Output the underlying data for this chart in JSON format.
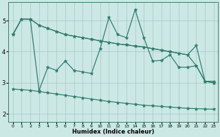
{
  "color": "#2d7d6e",
  "bg_color": "#cce8e4",
  "grid_color": "#aacccc",
  "xlabel": "Humidex (Indice chaleur)",
  "xlim": [
    -0.5,
    23.5
  ],
  "ylim": [
    1.75,
    5.6
  ],
  "yticks": [
    2,
    3,
    4,
    5
  ],
  "xticks": [
    0,
    1,
    2,
    3,
    4,
    5,
    6,
    7,
    8,
    9,
    10,
    11,
    12,
    13,
    14,
    15,
    16,
    17,
    18,
    19,
    20,
    21,
    22,
    23
  ],
  "marker": "*",
  "markersize": 3.5,
  "linewidth": 0.9,
  "lines": [
    {
      "x": [
        0,
        1,
        2,
        3,
        4,
        5,
        6,
        7,
        8,
        9,
        10,
        11,
        12,
        13,
        14,
        15,
        16,
        17,
        18,
        19,
        20,
        21,
        22,
        23
      ],
      "y": [
        4.55,
        5.05,
        5.05,
        4.85,
        4.75,
        4.65,
        4.55,
        4.5,
        4.45,
        4.4,
        4.35,
        4.3,
        4.25,
        4.22,
        4.18,
        4.15,
        4.1,
        4.05,
        4.0,
        3.95,
        3.9,
        4.2,
        3.05,
        3.0
      ]
    },
    {
      "x": [
        0,
        1,
        2,
        3,
        4,
        5,
        6,
        7,
        8,
        9,
        10,
        11,
        12,
        13,
        14,
        15,
        16,
        17,
        18,
        19,
        20,
        21,
        22,
        23
      ],
      "y": [
        4.55,
        5.05,
        5.05,
        2.75,
        3.5,
        3.4,
        3.7,
        3.4,
        3.35,
        3.3,
        4.1,
        5.1,
        4.55,
        4.45,
        5.35,
        4.45,
        3.7,
        3.72,
        3.9,
        3.5,
        3.5,
        3.55,
        3.05,
        3.05
      ]
    },
    {
      "x": [
        0,
        1,
        2,
        3,
        4,
        5,
        6,
        7,
        8,
        9,
        10,
        11,
        12,
        13,
        14,
        15,
        16,
        17,
        18,
        19,
        20,
        21,
        22,
        23
      ],
      "y": [
        4.55,
        5.05,
        5.05,
        4.85,
        4.75,
        4.65,
        4.55,
        4.5,
        4.45,
        4.4,
        4.35,
        4.3,
        4.25,
        4.22,
        4.18,
        4.15,
        4.1,
        4.05,
        4.0,
        3.95,
        3.9,
        3.55,
        3.05,
        3.0
      ]
    },
    {
      "x": [
        0,
        1,
        2,
        3,
        4,
        5,
        6,
        7,
        8,
        9,
        10,
        11,
        12,
        13,
        14,
        15,
        16,
        17,
        18,
        19,
        20,
        21,
        22,
        23
      ],
      "y": [
        2.8,
        2.78,
        2.76,
        2.72,
        2.68,
        2.64,
        2.6,
        2.56,
        2.52,
        2.48,
        2.44,
        2.4,
        2.37,
        2.34,
        2.31,
        2.28,
        2.26,
        2.24,
        2.22,
        2.2,
        2.18,
        2.17,
        2.16,
        2.15
      ]
    }
  ]
}
